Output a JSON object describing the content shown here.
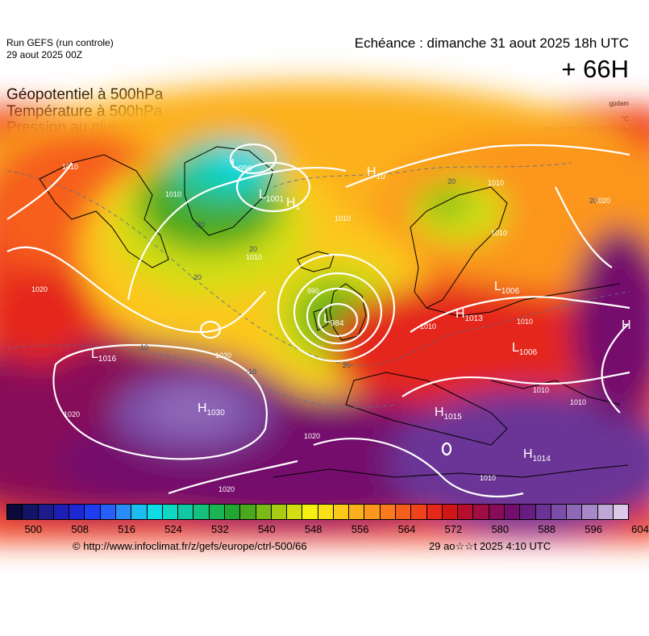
{
  "header": {
    "run_line1": "Run GEFS (run controle)",
    "run_line2": "29 aout 2025 00Z",
    "echeance": "Echéance : dimanche 31 aout 2025 18h UTC",
    "horizon": "+ 66H"
  },
  "variables": {
    "line1": "Géopotentiel à 500hPa",
    "line2": "Température à 500hPa",
    "line3": "Pression au niveau de la mer",
    "unit_geopot": "gpdam",
    "unit_temp": "°C",
    "max_min": "[Max 1030.1 | Min 977.7] hPa"
  },
  "map": {
    "pressure_centers": [
      {
        "type": "L",
        "value": "996"
      },
      {
        "type": "L",
        "value": "1001"
      },
      {
        "type": "H",
        "value": "10"
      },
      {
        "type": "H",
        "value": "1"
      },
      {
        "type": "L",
        "value": "984"
      },
      {
        "type": "L",
        "value": "1016"
      },
      {
        "type": "H",
        "value": "1030"
      },
      {
        "type": "L",
        "value": "1006"
      },
      {
        "type": "H",
        "value": "1013"
      },
      {
        "type": "L",
        "value": "1006"
      },
      {
        "type": "H",
        "value": "1015"
      },
      {
        "type": "H",
        "value": "1014"
      }
    ],
    "isobar_labels": [
      "1010",
      "1010",
      "1010",
      "1010",
      "1020",
      "1020",
      "1020",
      "1020",
      "1020",
      "1010",
      "990",
      "1010",
      "1010",
      "1010",
      "1010",
      "1010",
      "1020",
      "1010"
    ],
    "temperature_labels": [
      "20",
      "-20",
      "20",
      "20",
      "20",
      "-20",
      "-10",
      "-10"
    ]
  },
  "colorbar": {
    "colors": [
      "#0a0a3a",
      "#141466",
      "#1c1c8c",
      "#1e1eb4",
      "#1e28d2",
      "#1e3cf0",
      "#2660f8",
      "#2a8cf8",
      "#1ebcf0",
      "#10dce6",
      "#10d6c4",
      "#12c8a2",
      "#16c07c",
      "#1ab454",
      "#22a632",
      "#4aa81e",
      "#7cba18",
      "#a8cc14",
      "#d2de12",
      "#f6f012",
      "#fae016",
      "#fcc81a",
      "#fcb01c",
      "#fc961c",
      "#fa7a1c",
      "#f65e1c",
      "#f0421c",
      "#e4281a",
      "#d21416",
      "#b80e2e",
      "#a00c44",
      "#880c58",
      "#740e6c",
      "#681c80",
      "#6a3496",
      "#7c4ea8",
      "#9068b8",
      "#a888c8",
      "#c0a8d6",
      "#dcc8e8"
    ],
    "ticks": [
      "500",
      "508",
      "516",
      "524",
      "532",
      "540",
      "548",
      "556",
      "564",
      "572",
      "580",
      "588",
      "596",
      "604"
    ]
  },
  "footer": {
    "copyright": "© http://www.infoclimat.fr/z/gefs/europe/ctrl-500/66",
    "generated": "29 ao☆☆t 2025  4:10 UTC"
  }
}
